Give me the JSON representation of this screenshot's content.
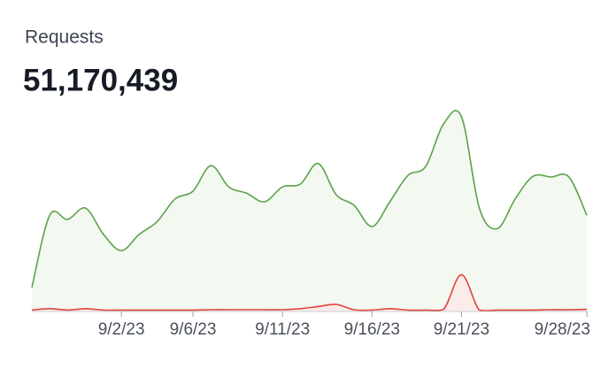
{
  "chart_data": {
    "type": "area",
    "title": "Requests",
    "total": "51,170,439",
    "categories": [
      null,
      null,
      null,
      null,
      null,
      "9/2/23",
      null,
      null,
      null,
      "9/6/23",
      null,
      null,
      null,
      null,
      "9/11/23",
      null,
      null,
      null,
      null,
      "9/16/23",
      null,
      null,
      null,
      null,
      "9/21/23",
      null,
      null,
      null,
      null,
      null,
      null,
      "9/28/23"
    ],
    "series": [
      {
        "color": "#5ba24a",
        "fill": "#f3f8f1",
        "values": [
          340000,
          1360000,
          1300000,
          1460000,
          1090000,
          860000,
          1090000,
          1270000,
          1590000,
          1700000,
          2060000,
          1760000,
          1670000,
          1550000,
          1760000,
          1800000,
          2090000,
          1650000,
          1500000,
          1200000,
          1550000,
          1920000,
          2050000,
          2650000,
          2750000,
          1460000,
          1170000,
          1590000,
          1910000,
          1900000,
          1900000,
          1360000
        ]
      },
      {
        "color": "#e0443c",
        "fill": "#fbecea",
        "values": [
          20000,
          40000,
          20000,
          40000,
          20000,
          20000,
          20000,
          20000,
          20000,
          20000,
          25000,
          25000,
          25000,
          25000,
          25000,
          40000,
          70000,
          100000,
          25000,
          20000,
          40000,
          20000,
          20000,
          30000,
          520000,
          20000,
          20000,
          20000,
          20000,
          25000,
          25000,
          30000
        ]
      }
    ],
    "ylim": [
      0,
      2900000
    ]
  }
}
